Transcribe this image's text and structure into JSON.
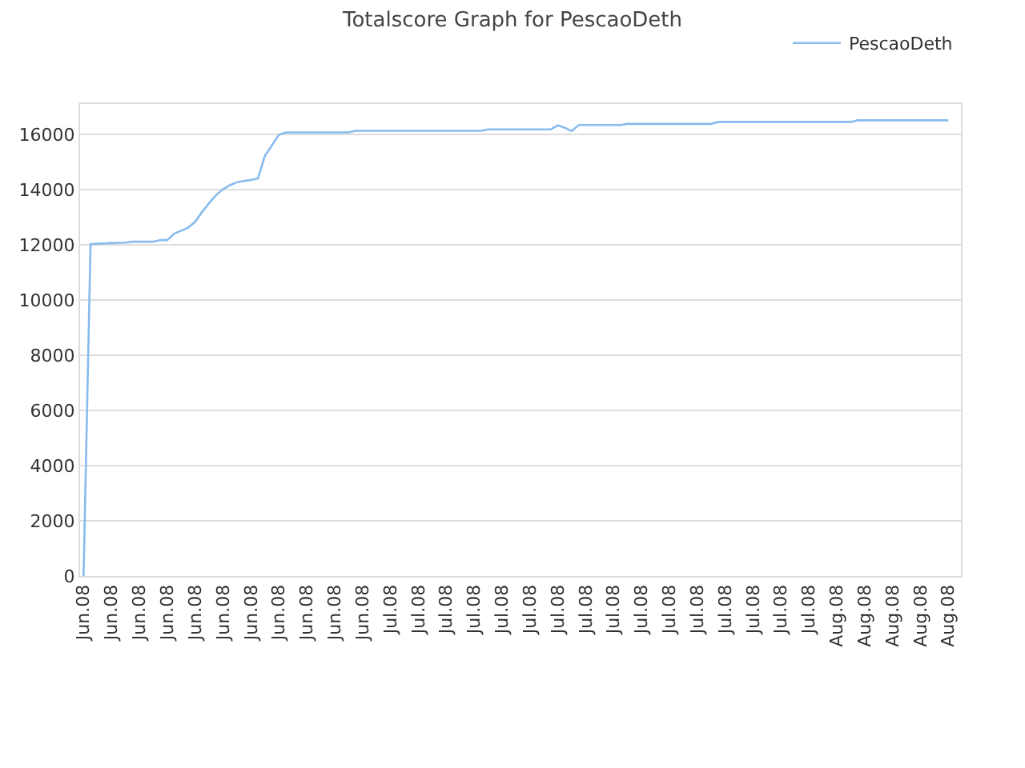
{
  "chart_data": {
    "type": "line",
    "title": "Totalscore Graph for PescaoDeth",
    "categories": [
      "Jun.08",
      null,
      null,
      null,
      "Jun.08",
      null,
      null,
      null,
      "Jun.08",
      null,
      null,
      null,
      "Jun.08",
      null,
      null,
      null,
      "Jun.08",
      null,
      null,
      null,
      "Jun.08",
      null,
      null,
      null,
      "Jun.08",
      null,
      null,
      null,
      "Jun.08",
      null,
      null,
      null,
      "Jun.08",
      null,
      null,
      null,
      "Jun.08",
      null,
      null,
      null,
      "Jun.08",
      null,
      null,
      null,
      "Jul.08",
      null,
      null,
      null,
      "Jul.08",
      null,
      null,
      null,
      "Jul.08",
      null,
      null,
      null,
      "Jul.08",
      null,
      null,
      null,
      "Jul.08",
      null,
      null,
      null,
      "Jul.08",
      null,
      null,
      null,
      "Jul.08",
      null,
      null,
      null,
      "Jul.08",
      null,
      null,
      null,
      "Jul.08",
      null,
      null,
      null,
      "Jul.08",
      null,
      null,
      null,
      "Jul.08",
      null,
      null,
      null,
      "Jul.08",
      null,
      null,
      null,
      "Jul.08",
      null,
      null,
      null,
      "Jul.08",
      null,
      null,
      null,
      "Jul.08",
      null,
      null,
      null,
      "Jul.08",
      null,
      null,
      null,
      "Aug.08",
      null,
      null,
      null,
      "Aug.08",
      null,
      null,
      null,
      "Aug.08",
      null,
      null,
      null,
      "Aug.08",
      null,
      null,
      null,
      "Aug.08"
    ],
    "series": [
      {
        "name": "PescaoDeth",
        "color": "#88bbee",
        "values": [
          0,
          12020,
          12040,
          12050,
          12060,
          12070,
          12080,
          12110,
          12110,
          12110,
          12110,
          12170,
          12170,
          12400,
          12510,
          12620,
          12830,
          13190,
          13510,
          13800,
          14010,
          14160,
          14270,
          14310,
          14350,
          14400,
          15220,
          15600,
          15980,
          16070,
          16070,
          16070,
          16070,
          16070,
          16070,
          16070,
          16070,
          16070,
          16070,
          16130,
          16130,
          16130,
          16130,
          16130,
          16130,
          16130,
          16130,
          16130,
          16130,
          16130,
          16130,
          16130,
          16130,
          16130,
          16130,
          16130,
          16130,
          16130,
          16180,
          16180,
          16180,
          16180,
          16180,
          16180,
          16180,
          16180,
          16180,
          16180,
          16330,
          16240,
          16120,
          16340,
          16340,
          16340,
          16340,
          16340,
          16340,
          16340,
          16380,
          16380,
          16380,
          16380,
          16380,
          16380,
          16380,
          16380,
          16380,
          16380,
          16380,
          16380,
          16380,
          16450,
          16450,
          16450,
          16450,
          16450,
          16450,
          16450,
          16450,
          16450,
          16450,
          16450,
          16450,
          16450,
          16450,
          16450,
          16450,
          16450,
          16450,
          16450,
          16450,
          16510,
          16510,
          16510,
          16510,
          16510,
          16510,
          16510,
          16510,
          16510,
          16510,
          16510,
          16510,
          16510,
          16510
        ]
      }
    ],
    "ylim": [
      0,
      17100
    ],
    "yticks": [
      0,
      2000,
      4000,
      6000,
      8000,
      10000,
      12000,
      14000,
      16000
    ],
    "grid": "y",
    "legend": "top right",
    "marker": "none",
    "line_style": "solid"
  }
}
